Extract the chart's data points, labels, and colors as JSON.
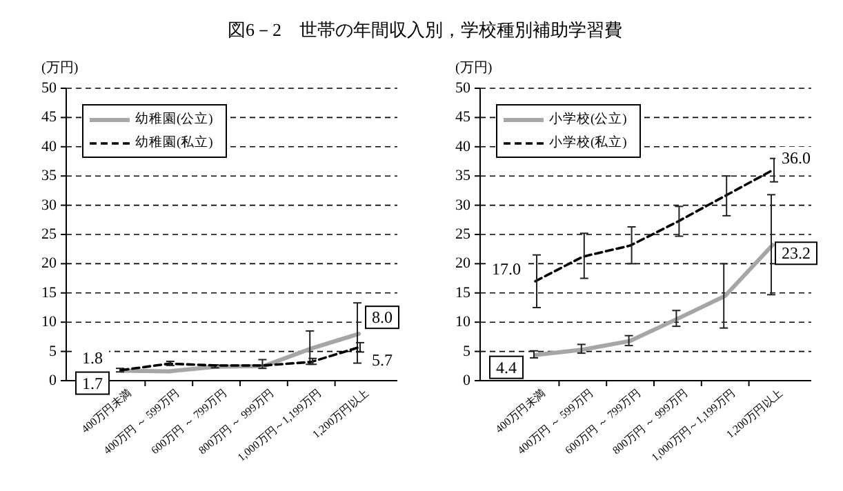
{
  "chart_data": [
    {
      "type": "line",
      "title": "図6－2　世帯の年間収入別，学校種別補助学習費",
      "ylabel": "(万円)",
      "categories": [
        "400万円未満",
        "400万円 ～ 599万円",
        "600万円 ～ 799万円",
        "800万円 ～ 999万円",
        "1,000万円～1,199万円",
        "1,200万円以上"
      ],
      "ylim": [
        0,
        50
      ],
      "yticks": [
        0,
        5,
        10,
        15,
        20,
        25,
        30,
        35,
        40,
        45,
        50
      ],
      "grid": "y",
      "legend": "top left",
      "series": [
        {
          "name": "幼稚園(公立)",
          "color": "#a6a6a6",
          "line_style": "solid",
          "values": [
            1.7,
            1.6,
            2.4,
            2.5,
            5.5,
            8.0
          ],
          "errors": [
            [
              1.5,
              2.1
            ],
            null,
            [
              2.2,
              2.7
            ],
            [
              2.1,
              3.6
            ],
            [
              2.8,
              8.5
            ],
            [
              3.0,
              13.3
            ]
          ],
          "value_labels": [
            "1.7",
            null,
            null,
            null,
            null,
            "8.0"
          ]
        },
        {
          "name": "幼稚園(私立)",
          "color": "#000000",
          "line_style": "dashed",
          "values": [
            1.8,
            2.9,
            2.6,
            2.6,
            3.2,
            5.7
          ],
          "errors": [
            null,
            [
              2.6,
              3.3
            ],
            null,
            null,
            [
              2.8,
              3.8
            ],
            [
              4.9,
              6.5
            ]
          ],
          "value_labels": [
            "1.8",
            null,
            null,
            null,
            null,
            "5.7"
          ]
        }
      ]
    },
    {
      "type": "line",
      "ylabel": "(万円)",
      "categories": [
        "400万円未満",
        "400万円 ～ 599万円",
        "600万円 ～ 799万円",
        "800万円 ～ 999万円",
        "1,000万円～1,199万円",
        "1,200万円以上"
      ],
      "ylim": [
        0,
        50
      ],
      "yticks": [
        0,
        5,
        10,
        15,
        20,
        25,
        30,
        35,
        40,
        45,
        50
      ],
      "grid": "y",
      "legend": "top left",
      "series": [
        {
          "name": "小学校(公立)",
          "color": "#a6a6a6",
          "line_style": "solid",
          "values": [
            4.4,
            5.3,
            6.8,
            10.6,
            14.5,
            23.2
          ],
          "errors": [
            [
              3.9,
              5.1
            ],
            [
              4.7,
              6.2
            ],
            [
              6.0,
              7.7
            ],
            [
              9.3,
              12.0
            ],
            [
              9.0,
              20.0
            ],
            [
              14.7,
              31.8
            ]
          ],
          "value_labels": [
            "4.4",
            null,
            null,
            null,
            null,
            "23.2"
          ]
        },
        {
          "name": "小学校(私立)",
          "color": "#000000",
          "line_style": "dashed",
          "values": [
            17.0,
            21.2,
            23.1,
            27.2,
            31.6,
            36.0
          ],
          "errors": [
            [
              12.5,
              21.5
            ],
            [
              17.5,
              25.2
            ],
            [
              20.0,
              26.3
            ],
            [
              24.7,
              29.8
            ],
            [
              28.2,
              35.0
            ],
            [
              34.0,
              38.0
            ]
          ],
          "value_labels": [
            "17.0",
            null,
            null,
            null,
            null,
            "36.0"
          ]
        }
      ]
    }
  ]
}
